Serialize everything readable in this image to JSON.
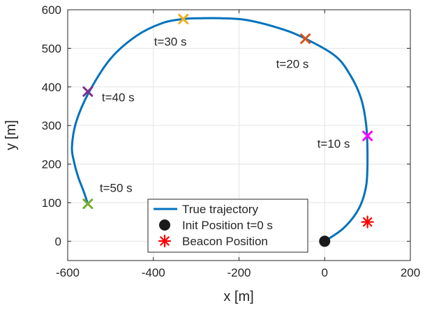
{
  "chart_data": {
    "type": "scatter",
    "xlabel": "x [m]",
    "ylabel": "y [m]",
    "xlim": [
      -600,
      200
    ],
    "ylim": [
      -50,
      600
    ],
    "xticks": [
      -600,
      -400,
      -200,
      0,
      200
    ],
    "yticks": [
      0,
      100,
      200,
      300,
      400,
      500,
      600
    ],
    "xtick_labels": [
      "-600",
      "-400",
      "-200",
      "0",
      "200"
    ],
    "ytick_labels": [
      "0",
      "100",
      "200",
      "300",
      "400",
      "500",
      "600"
    ],
    "grid": true,
    "legend_position": "bottom-center",
    "series": [
      {
        "name": "True trajectory",
        "kind": "line",
        "color": "#0072BD",
        "x": [
          0,
          45,
          80,
          97,
          100,
          97,
          85,
          60,
          25,
          -45,
          -100,
          -180,
          -240,
          -290,
          -330,
          -380,
          -440,
          -500,
          -550,
          -580,
          -590,
          -585,
          -575,
          -563,
          -553
        ],
        "y": [
          0,
          35,
          85,
          145,
          220,
          300,
          370,
          430,
          480,
          525,
          550,
          573,
          578,
          578,
          576,
          565,
          532,
          473,
          387,
          310,
          245,
          205,
          165,
          130,
          97
        ]
      },
      {
        "name": "Init Position t=0 s",
        "kind": "marker",
        "marker": "filled-circle",
        "color": "#1a1a1a",
        "x": [
          0
        ],
        "y": [
          0
        ]
      },
      {
        "name": "Beacon Position",
        "kind": "marker",
        "marker": "asterisk",
        "color": "#ff0000",
        "x": [
          100
        ],
        "y": [
          50
        ]
      }
    ],
    "time_markers": [
      {
        "label": "t=10 s",
        "x": 100,
        "y": 273,
        "color": "#ff00ff"
      },
      {
        "label": "t=20 s",
        "x": -45,
        "y": 525,
        "color": "#D95319"
      },
      {
        "label": "t=30 s",
        "x": -330,
        "y": 576,
        "color": "#EDB120"
      },
      {
        "label": "t=40 s",
        "x": -553,
        "y": 388,
        "color": "#7E2F8E"
      },
      {
        "label": "t=50 s",
        "x": -553,
        "y": 97,
        "color": "#77AC30"
      }
    ]
  }
}
